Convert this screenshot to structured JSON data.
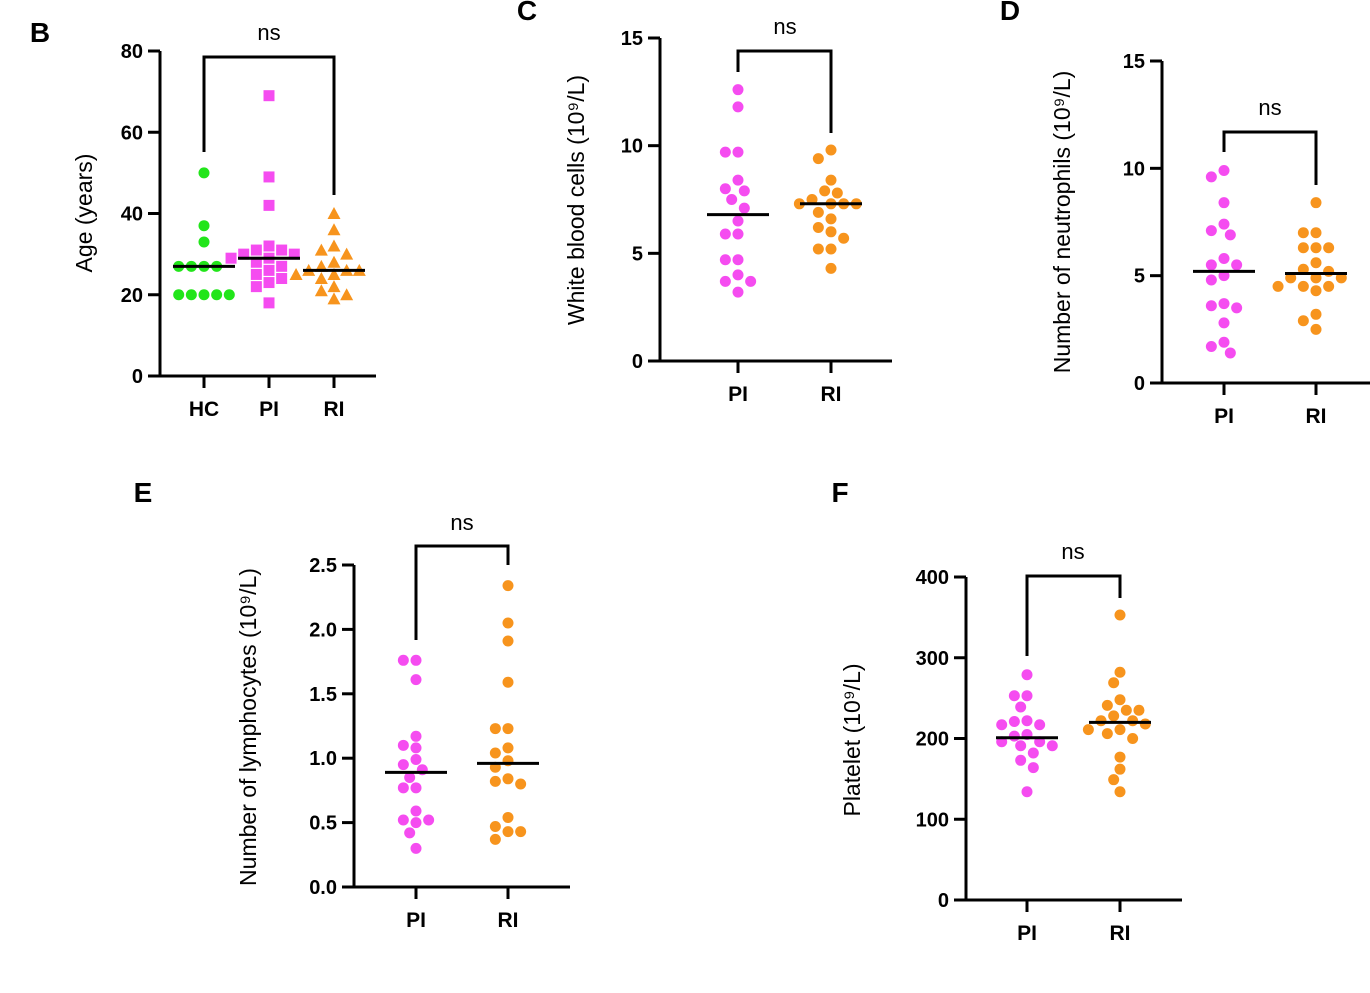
{
  "colors": {
    "HC": "#22e51a",
    "PI": "#f54cf0",
    "RI": "#f7941d",
    "axis": "#000000"
  },
  "chart_data": [
    {
      "panel": "B",
      "type": "scatter",
      "ylabel": "Age (years)",
      "ylim": [
        0,
        80
      ],
      "yticks": [
        "0",
        "20",
        "40",
        "60",
        "80"
      ],
      "ytick_values": [
        0,
        20,
        40,
        60,
        80
      ],
      "categories": [
        "HC",
        "PI",
        "RI"
      ],
      "groups": [
        {
          "name": "HC",
          "marker": "circle",
          "median": 27,
          "values": [
            50,
            37,
            33,
            27,
            27,
            27,
            27,
            20,
            20,
            20,
            20,
            20
          ]
        },
        {
          "name": "PI",
          "marker": "square",
          "median": 29,
          "values": [
            69,
            49,
            42,
            32,
            31,
            31,
            30,
            30,
            29,
            29,
            28,
            27,
            26,
            25,
            24,
            23,
            22,
            18
          ]
        },
        {
          "name": "RI",
          "marker": "triangle",
          "median": 26,
          "values": [
            40,
            36,
            32,
            31,
            30,
            28,
            27,
            26,
            26,
            26,
            25,
            25,
            24,
            22,
            21,
            20,
            19
          ]
        }
      ],
      "comparison": {
        "from": "HC",
        "to": "RI",
        "label": "ns"
      }
    },
    {
      "panel": "C",
      "type": "scatter",
      "ylabel": "White blood cells (10⁹/L)",
      "ylim": [
        0,
        15
      ],
      "yticks": [
        "0",
        "5",
        "10",
        "15"
      ],
      "ytick_values": [
        0,
        5,
        10,
        15
      ],
      "categories": [
        "PI",
        "RI"
      ],
      "groups": [
        {
          "name": "PI",
          "marker": "circle",
          "median": 6.8,
          "values": [
            12.6,
            11.8,
            9.7,
            9.7,
            8.4,
            8.0,
            7.9,
            7.5,
            7.1,
            6.5,
            5.9,
            5.9,
            4.7,
            4.7,
            4.0,
            3.7,
            3.7,
            3.2
          ]
        },
        {
          "name": "RI",
          "marker": "circle",
          "median": 7.3,
          "values": [
            9.8,
            9.4,
            8.4,
            7.9,
            7.8,
            7.5,
            7.3,
            7.3,
            7.3,
            7.3,
            6.9,
            6.6,
            6.2,
            6.0,
            5.7,
            5.2,
            5.2,
            4.3
          ]
        }
      ],
      "comparison": {
        "from": "PI",
        "to": "RI",
        "label": "ns"
      }
    },
    {
      "panel": "D",
      "type": "scatter",
      "ylabel": "Number of neutrophils (10⁹/L)",
      "ylim": [
        0,
        15
      ],
      "yticks": [
        "0",
        "5",
        "10",
        "15"
      ],
      "ytick_values": [
        0,
        5,
        10,
        15
      ],
      "categories": [
        "PI",
        "RI"
      ],
      "groups": [
        {
          "name": "PI",
          "marker": "circle",
          "median": 5.2,
          "values": [
            9.9,
            9.6,
            8.4,
            7.4,
            7.1,
            6.9,
            5.8,
            5.5,
            5.5,
            5.0,
            4.8,
            3.7,
            3.6,
            3.5,
            2.8,
            1.9,
            1.7,
            1.4
          ]
        },
        {
          "name": "RI",
          "marker": "circle",
          "median": 5.1,
          "values": [
            8.4,
            7.0,
            7.0,
            6.3,
            6.3,
            6.3,
            5.6,
            5.3,
            5.2,
            4.9,
            4.9,
            4.9,
            4.5,
            4.5,
            4.5,
            4.3,
            3.2,
            2.9,
            2.5
          ]
        }
      ],
      "comparison": {
        "from": "PI",
        "to": "RI",
        "label": "ns"
      }
    },
    {
      "panel": "E",
      "type": "scatter",
      "ylabel": "Number of lymphocytes (10⁹/L)",
      "ylim": [
        0,
        2.5
      ],
      "yticks": [
        "0.0",
        "0.5",
        "1.0",
        "1.5",
        "2.0",
        "2.5"
      ],
      "ytick_values": [
        0,
        0.5,
        1.0,
        1.5,
        2.0,
        2.5
      ],
      "categories": [
        "PI",
        "RI"
      ],
      "groups": [
        {
          "name": "PI",
          "marker": "circle",
          "median": 0.89,
          "values": [
            1.76,
            1.76,
            1.61,
            1.17,
            1.1,
            1.08,
            0.99,
            0.95,
            0.91,
            0.85,
            0.77,
            0.77,
            0.59,
            0.52,
            0.52,
            0.5,
            0.42,
            0.3
          ]
        },
        {
          "name": "RI",
          "marker": "circle",
          "median": 0.96,
          "values": [
            2.34,
            2.05,
            1.91,
            1.59,
            1.23,
            1.23,
            1.08,
            1.04,
            0.98,
            0.93,
            0.84,
            0.82,
            0.8,
            0.54,
            0.47,
            0.43,
            0.43,
            0.37
          ]
        }
      ],
      "comparison": {
        "from": "PI",
        "to": "RI",
        "label": "ns"
      }
    },
    {
      "panel": "F",
      "type": "scatter",
      "ylabel": "Platelet (10⁹/L)",
      "ylim": [
        0,
        400
      ],
      "yticks": [
        "0",
        "100",
        "200",
        "300",
        "400"
      ],
      "ytick_values": [
        0,
        100,
        200,
        300,
        400
      ],
      "categories": [
        "PI",
        "RI"
      ],
      "groups": [
        {
          "name": "PI",
          "marker": "circle",
          "median": 201,
          "values": [
            279,
            253,
            253,
            239,
            222,
            221,
            217,
            217,
            205,
            203,
            196,
            196,
            191,
            191,
            182,
            173,
            164,
            134
          ]
        },
        {
          "name": "RI",
          "marker": "circle",
          "median": 220,
          "values": [
            353,
            282,
            269,
            248,
            241,
            235,
            235,
            228,
            222,
            222,
            218,
            211,
            211,
            206,
            200,
            177,
            162,
            149,
            134
          ]
        }
      ],
      "comparison": {
        "from": "PI",
        "to": "RI",
        "label": "ns"
      }
    }
  ]
}
